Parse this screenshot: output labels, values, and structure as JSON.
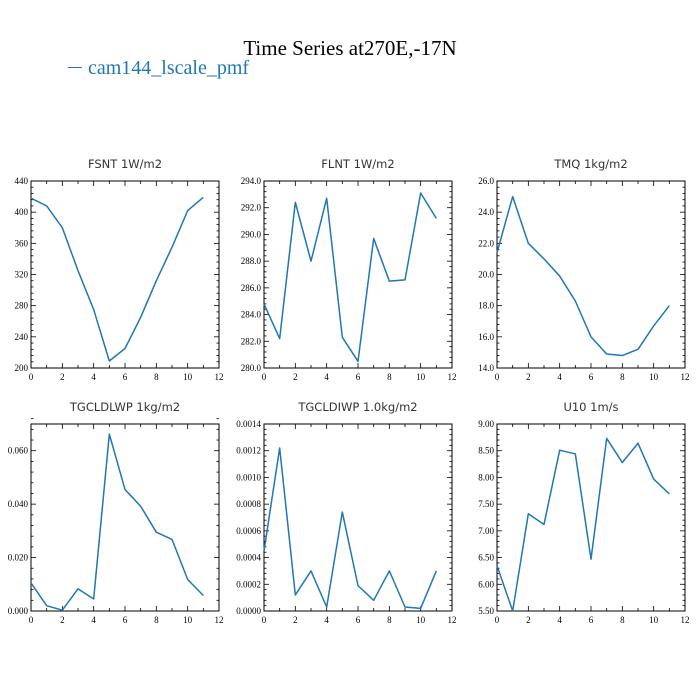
{
  "header": {
    "title": "Time Series at270E,-17N",
    "legend_label": "cam144_lscale_pmf",
    "legend_color": "#1f77b4"
  },
  "chart_data": [
    {
      "type": "line",
      "title": "FSNT   1W/m2",
      "xlim": [
        0,
        12
      ],
      "ylim": [
        200,
        440
      ],
      "xticks": [
        "0",
        "2",
        "4",
        "6",
        "8",
        "10",
        "12"
      ],
      "yticks": [
        "200",
        "240",
        "280",
        "320",
        "360",
        "400",
        "440"
      ],
      "series": [
        {
          "color": "#1f77b4",
          "x": [
            0,
            1,
            2,
            3,
            4,
            5,
            6,
            7,
            8,
            9,
            10,
            11
          ],
          "values": [
            418,
            408,
            380,
            325,
            275,
            209,
            225,
            265,
            312,
            355,
            402,
            419
          ]
        }
      ]
    },
    {
      "type": "line",
      "title": "FLNT   1W/m2",
      "xlim": [
        0,
        12
      ],
      "ylim": [
        280,
        294
      ],
      "xticks": [
        "0",
        "2",
        "4",
        "6",
        "8",
        "10",
        "12"
      ],
      "yticks": [
        "280.0",
        "282.0",
        "284.0",
        "286.0",
        "288.0",
        "290.0",
        "292.0",
        "294.0"
      ],
      "series": [
        {
          "color": "#1f77b4",
          "x": [
            0,
            1,
            2,
            3,
            4,
            5,
            6,
            7,
            8,
            9,
            10,
            11
          ],
          "values": [
            284.8,
            282.2,
            292.4,
            288.0,
            292.7,
            282.3,
            280.5,
            289.7,
            286.5,
            286.6,
            293.1,
            291.2
          ]
        }
      ]
    },
    {
      "type": "line",
      "title": "TMQ   1kg/m2",
      "xlim": [
        0,
        12
      ],
      "ylim": [
        14,
        26
      ],
      "xticks": [
        "0",
        "2",
        "4",
        "6",
        "8",
        "10",
        "12"
      ],
      "yticks": [
        "14.0",
        "16.0",
        "18.0",
        "20.0",
        "22.0",
        "24.0",
        "26.0"
      ],
      "series": [
        {
          "color": "#1f77b4",
          "x": [
            0,
            1,
            2,
            3,
            4,
            5,
            6,
            7,
            8,
            9,
            10,
            11
          ],
          "values": [
            21.4,
            25.0,
            22.0,
            21.0,
            19.9,
            18.3,
            16.0,
            14.9,
            14.8,
            15.2,
            16.7,
            18.0
          ]
        }
      ]
    },
    {
      "type": "line",
      "title": "TGCLDLWP   1kg/m2",
      "xlim": [
        0,
        12
      ],
      "ylim": [
        0,
        0.07
      ],
      "xticks": [
        "0",
        "2",
        "4",
        "6",
        "8",
        "10",
        "12"
      ],
      "yticks": [
        "0.000",
        "0.020",
        "0.040",
        "0.060"
      ],
      "ytick_values": [
        0,
        0.02,
        0.04,
        0.06
      ],
      "series": [
        {
          "color": "#1f77b4",
          "x": [
            0,
            1,
            2,
            3,
            4,
            5,
            6,
            7,
            8,
            9,
            10,
            11
          ],
          "values": [
            0.0105,
            0.002,
            0.0003,
            0.0083,
            0.0045,
            0.0662,
            0.0455,
            0.0392,
            0.0295,
            0.0268,
            0.0118,
            0.0058
          ]
        }
      ]
    },
    {
      "type": "line",
      "title": "TGCLDIWP   1.0kg/m2",
      "xlim": [
        0,
        12
      ],
      "ylim": [
        0,
        0.0014
      ],
      "xticks": [
        "0",
        "2",
        "4",
        "6",
        "8",
        "10",
        "12"
      ],
      "yticks": [
        "0.0000",
        "0.0002",
        "0.0004",
        "0.0006",
        "0.0008",
        "0.0010",
        "0.0012",
        "0.0014"
      ],
      "series": [
        {
          "color": "#1f77b4",
          "x": [
            0,
            1,
            2,
            3,
            4,
            5,
            6,
            7,
            8,
            9,
            10,
            11
          ],
          "values": [
            0.00045,
            0.00122,
            0.00012,
            0.0003,
            3e-05,
            0.00074,
            0.00019,
            8e-05,
            0.0003,
            3e-05,
            2e-05,
            0.0003
          ]
        }
      ]
    },
    {
      "type": "line",
      "title": "U10   1m/s",
      "xlim": [
        0,
        12
      ],
      "ylim": [
        5.5,
        9.0
      ],
      "xticks": [
        "0",
        "2",
        "4",
        "6",
        "8",
        "10",
        "12"
      ],
      "yticks": [
        "5.50",
        "6.00",
        "6.50",
        "7.00",
        "7.50",
        "8.00",
        "8.50",
        "9.00"
      ],
      "series": [
        {
          "color": "#1f77b4",
          "x": [
            0,
            1,
            2,
            3,
            4,
            5,
            6,
            7,
            8,
            9,
            10,
            11
          ],
          "values": [
            6.35,
            5.5,
            7.32,
            7.12,
            8.51,
            8.44,
            6.47,
            8.73,
            8.28,
            8.64,
            7.97,
            7.69
          ]
        }
      ]
    }
  ]
}
